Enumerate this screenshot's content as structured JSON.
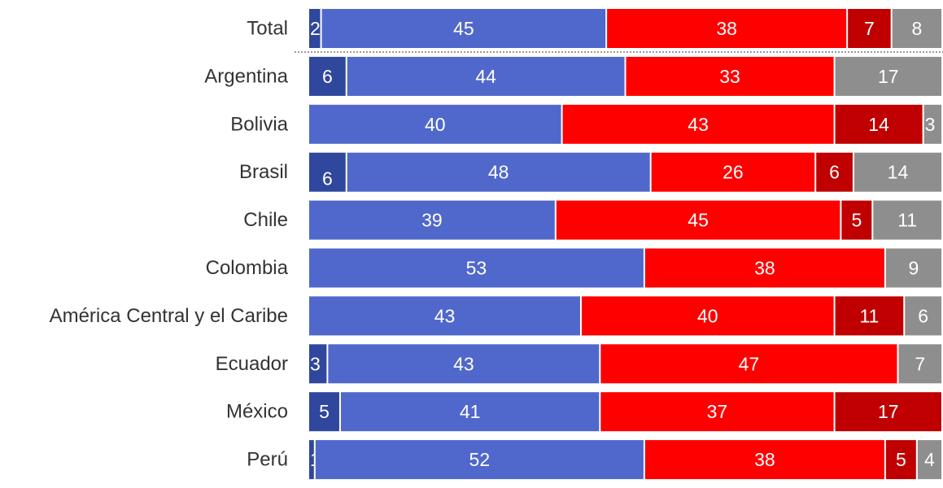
{
  "chart_data": {
    "type": "bar",
    "orientation": "horizontal",
    "stacked": true,
    "categories": [
      "Total",
      "Argentina",
      "Bolivia",
      "Brasil",
      "Chile",
      "Colombia",
      "América Central y el Caribe",
      "Ecuador",
      "México",
      "Perú"
    ],
    "highlighted_categories": [
      "Total",
      "México"
    ],
    "series": [
      {
        "color": "#2f479c",
        "values": [
          2,
          6,
          0,
          6,
          0,
          0,
          0,
          3,
          5,
          1
        ],
        "labels": [
          "2",
          "6",
          "",
          "6",
          "",
          "",
          "",
          "3",
          "5",
          "1"
        ]
      },
      {
        "color": "#5068cb",
        "values": [
          45,
          44,
          40,
          48,
          39,
          53,
          43,
          43,
          41,
          52
        ],
        "labels": [
          "45",
          "44",
          "40",
          "48",
          "39",
          "53",
          "43",
          "43",
          "41",
          "52"
        ]
      },
      {
        "color": "#fe0000",
        "values": [
          38,
          33,
          43,
          26,
          45,
          38,
          40,
          47,
          37,
          38
        ],
        "labels": [
          "38",
          "33",
          "43",
          "26",
          "45",
          "38",
          "40",
          "47",
          "37",
          "38"
        ]
      },
      {
        "color": "#c00000",
        "values": [
          7,
          0,
          14,
          6,
          5,
          0,
          11,
          0,
          17,
          5
        ],
        "labels": [
          "7",
          "",
          "14",
          "6",
          "5",
          "",
          "11",
          "",
          "17",
          "5"
        ]
      },
      {
        "color": "#8e8e8e",
        "values": [
          8,
          17,
          3,
          14,
          11,
          9,
          6,
          7,
          0,
          4
        ],
        "labels": [
          "8",
          "17",
          "3",
          "14",
          "11",
          "9",
          "6",
          "7",
          "",
          "4"
        ]
      }
    ],
    "xlim": [
      0,
      100
    ],
    "title": "",
    "xlabel": "",
    "ylabel": "",
    "grid": false,
    "legend": "none"
  },
  "colors": {
    "total_label": "#111111",
    "highlight_label": "#0e9a8e",
    "category_label": "#333333",
    "value_label": "#ffffff",
    "separator": "#999999"
  }
}
